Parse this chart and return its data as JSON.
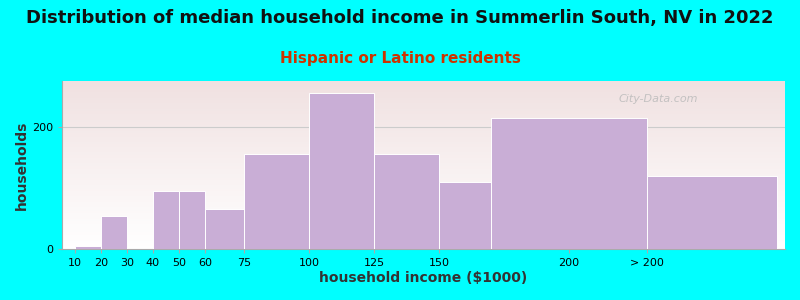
{
  "title": "Distribution of median household income in Summerlin South, NV in 2022",
  "subtitle": "Hispanic or Latino residents",
  "xlabel": "household income ($1000)",
  "ylabel": "households",
  "background_color": "#00FFFF",
  "bar_color": "#c9aed6",
  "bar_edge_color": "#ffffff",
  "values": [
    5,
    55,
    0,
    95,
    95,
    65,
    155,
    255,
    155,
    110,
    215,
    120
  ],
  "watermark": "City-Data.com",
  "ylim": [
    0,
    275
  ],
  "yticks": [
    0,
    200
  ],
  "title_fontsize": 13,
  "subtitle_fontsize": 11,
  "axis_label_fontsize": 10
}
